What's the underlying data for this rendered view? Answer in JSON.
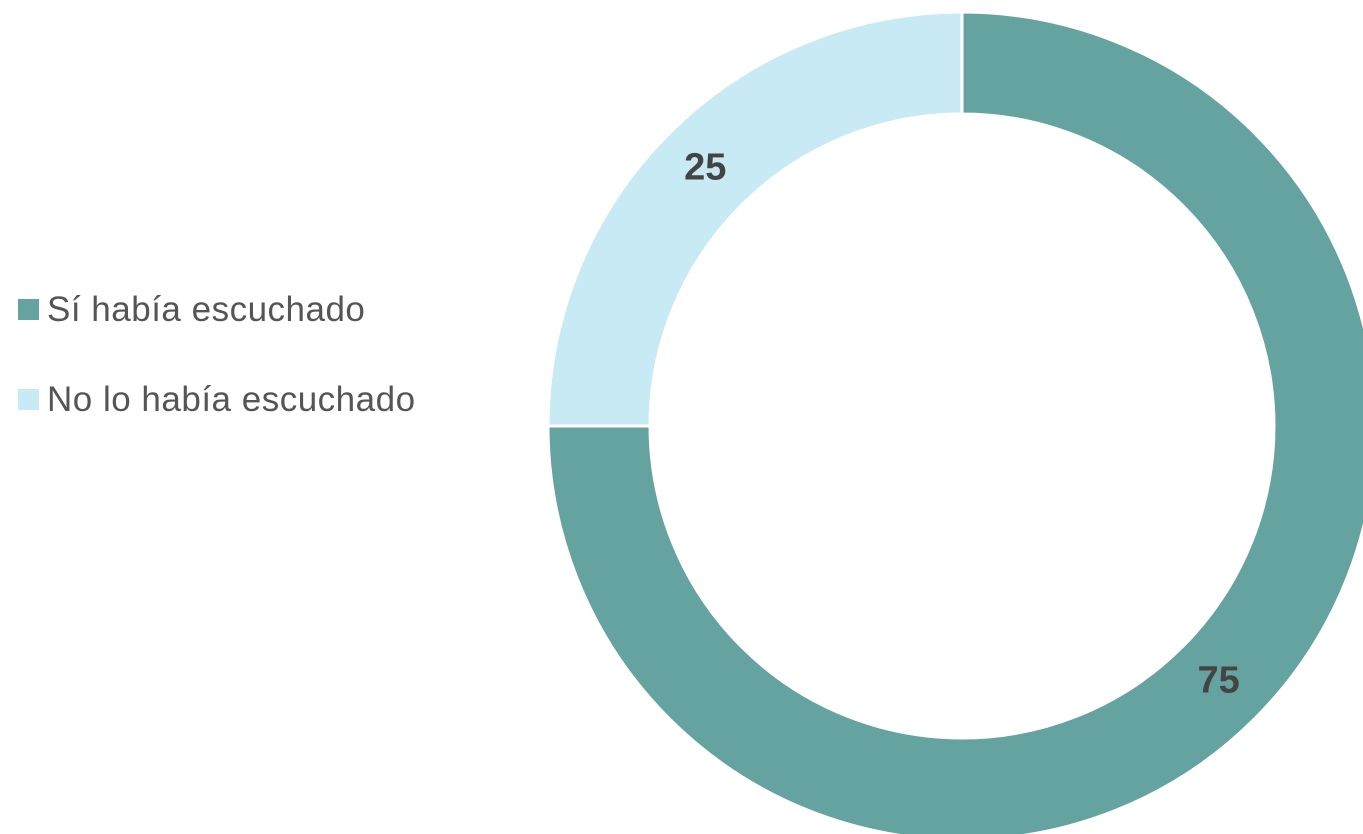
{
  "chart_data": {
    "type": "donut",
    "categories": [
      "Sí había escuchado",
      "No lo había escuchado"
    ],
    "values": [
      75,
      25
    ],
    "colors": [
      "#64a3a0",
      "#c8eaf5"
    ]
  }
}
